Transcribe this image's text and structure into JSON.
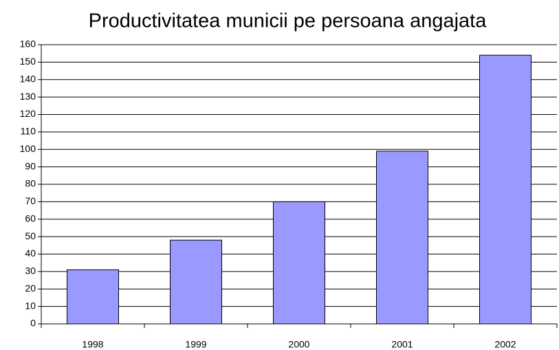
{
  "chart_data": {
    "type": "bar",
    "title": "Productivitatea municii pe persoana angajata",
    "categories": [
      "1998",
      "1999",
      "2000",
      "2001",
      "2002"
    ],
    "values": [
      31,
      48,
      70,
      99,
      154
    ],
    "color": "#9999ff",
    "ylim": [
      0,
      160
    ],
    "yticks": [
      0,
      10,
      20,
      30,
      40,
      50,
      60,
      70,
      80,
      90,
      100,
      110,
      120,
      130,
      140,
      150,
      160
    ],
    "grid": true
  }
}
